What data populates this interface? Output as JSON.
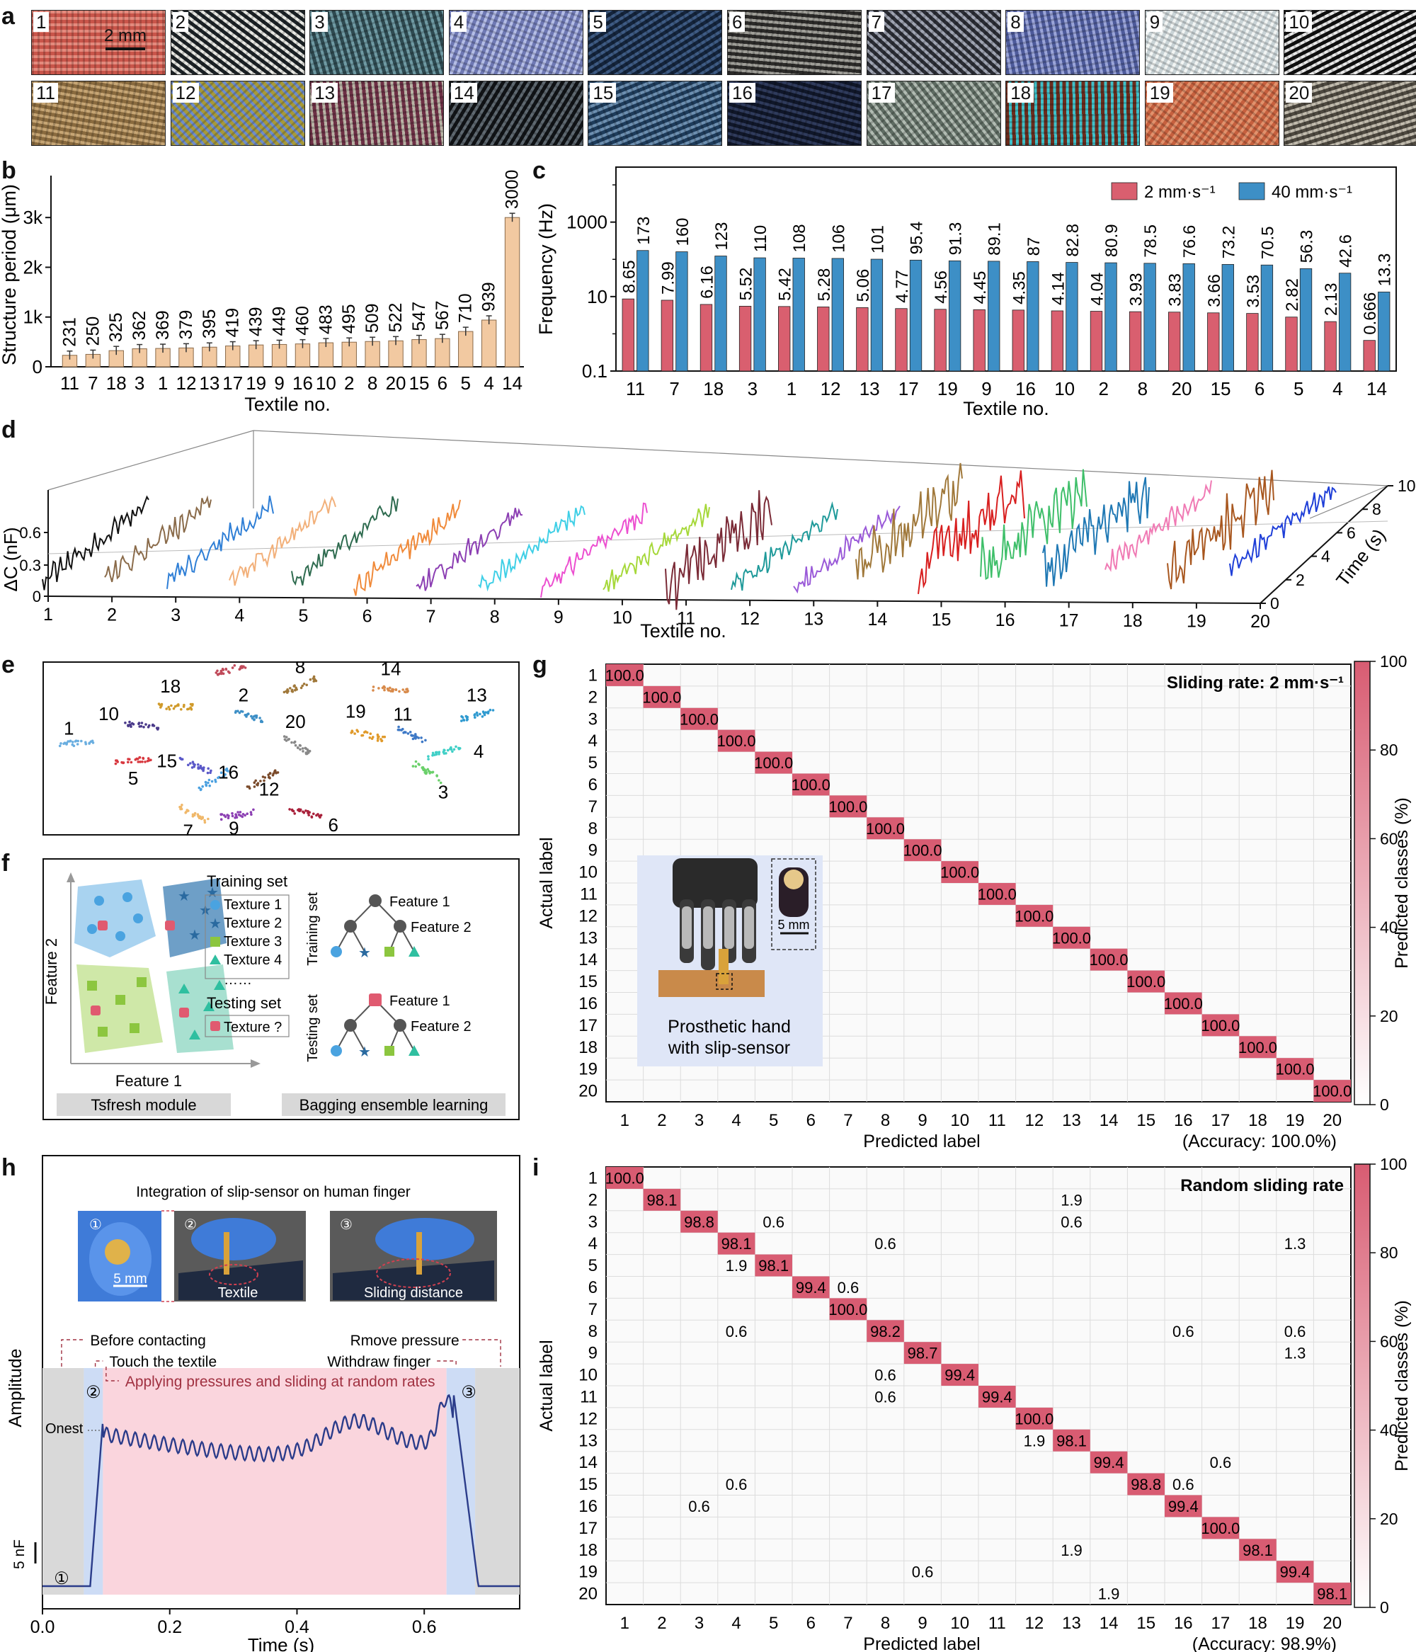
{
  "panel_labels": {
    "a": "a",
    "b": "b",
    "c": "c",
    "d": "d",
    "e": "e",
    "f": "f",
    "g": "g",
    "h": "h",
    "i": "i"
  },
  "panel_a": {
    "scale_bar": "2 mm",
    "tiles": [
      {
        "n": "1",
        "c1": "#c9554a",
        "c2": "#e58a7d"
      },
      {
        "n": "2",
        "c1": "#1c2226",
        "c2": "#e7e7e2"
      },
      {
        "n": "3",
        "c1": "#2f4b52",
        "c2": "#6f9aa3"
      },
      {
        "n": "4",
        "c1": "#6f79b4",
        "c2": "#b4bde6"
      },
      {
        "n": "5",
        "c1": "#14243c",
        "c2": "#3e5b84"
      },
      {
        "n": "6",
        "c1": "#2c2b29",
        "c2": "#9f9e98"
      },
      {
        "n": "7",
        "c1": "#2b2d35",
        "c2": "#9fa4b2"
      },
      {
        "n": "8",
        "c1": "#4e5b9b",
        "c2": "#9aa4d8"
      },
      {
        "n": "9",
        "c1": "#c9d3d6",
        "c2": "#f2f5f4"
      },
      {
        "n": "10",
        "c1": "#111111",
        "c2": "#e8e8e8"
      },
      {
        "n": "11",
        "c1": "#8a6b3f",
        "c2": "#c7a675"
      },
      {
        "n": "12",
        "c1": "#a79a39",
        "c2": "#6f8cc9"
      },
      {
        "n": "13",
        "c1": "#6d3045",
        "c2": "#b8b3a5"
      },
      {
        "n": "14",
        "c1": "#111417",
        "c2": "#5e6870"
      },
      {
        "n": "15",
        "c1": "#1e3c5b",
        "c2": "#6d8fb0"
      },
      {
        "n": "16",
        "c1": "#10172a",
        "c2": "#2f3b5c"
      },
      {
        "n": "17",
        "c1": "#5e6b62",
        "c2": "#b1bbb2"
      },
      {
        "n": "18",
        "c1": "#6b2d1e",
        "c2": "#3fc1c9"
      },
      {
        "n": "19",
        "c1": "#c6603e",
        "c2": "#e2926d"
      },
      {
        "n": "20",
        "c1": "#4e4940",
        "c2": "#c2bcae"
      }
    ]
  },
  "chart_data": [
    {
      "type": "bar",
      "title": "",
      "xlabel": "Textile no.",
      "ylabel": "Structure period (μm)",
      "ylim": [
        0,
        3700
      ],
      "yticks": [
        "0",
        "1k",
        "2k",
        "3k"
      ],
      "categories": [
        "11",
        "7",
        "18",
        "3",
        "1",
        "12",
        "13",
        "17",
        "19",
        "9",
        "16",
        "10",
        "2",
        "8",
        "20",
        "15",
        "6",
        "5",
        "4",
        "14"
      ],
      "values": [
        231,
        250,
        325,
        362,
        369,
        379,
        395,
        419,
        439,
        449,
        460,
        483,
        495,
        509,
        522,
        547,
        567,
        710,
        939,
        3000
      ],
      "labels": [
        "231",
        "250",
        "325",
        "362",
        "369",
        "379",
        "395",
        "419",
        "439",
        "449",
        "460",
        "483",
        "495",
        "509",
        "522",
        "547",
        "567",
        "710",
        "939",
        "3000"
      ],
      "color": "#f2c9a1",
      "error_bars": true
    },
    {
      "type": "bar",
      "title": "",
      "xlabel": "Textile no.",
      "ylabel": "Frequency (Hz)",
      "log_scale": true,
      "ylim": [
        0.1,
        30000
      ],
      "yticks": [
        "0.1",
        "10",
        "1000"
      ],
      "categories": [
        "11",
        "7",
        "18",
        "3",
        "1",
        "12",
        "13",
        "17",
        "19",
        "9",
        "16",
        "10",
        "2",
        "8",
        "20",
        "15",
        "6",
        "5",
        "4",
        "14"
      ],
      "series": [
        {
          "name": "2 mm·s⁻¹",
          "color": "#d95f6f",
          "values": [
            8.65,
            7.99,
            6.16,
            5.52,
            5.42,
            5.28,
            5.06,
            4.77,
            4.56,
            4.45,
            4.35,
            4.14,
            4.04,
            3.93,
            3.83,
            3.66,
            3.53,
            2.82,
            2.13,
            0.666
          ],
          "labels": [
            "8.65",
            "7.99",
            "6.16",
            "5.52",
            "5.42",
            "5.28",
            "5.06",
            "4.77",
            "4.56",
            "4.45",
            "4.35",
            "4.14",
            "4.04",
            "3.93",
            "3.83",
            "3.66",
            "3.53",
            "2.82",
            "2.13",
            "0.666"
          ]
        },
        {
          "name": "40 mm·s⁻¹",
          "color": "#3d8fc6",
          "values": [
            173,
            160,
            123,
            110,
            108,
            106,
            101,
            95.4,
            91.3,
            89.1,
            87,
            82.8,
            80.9,
            78.5,
            76.6,
            73.2,
            70.5,
            56.3,
            42.6,
            13.3
          ],
          "labels": [
            "173",
            "160",
            "123",
            "110",
            "108",
            "106",
            "101",
            "95.4",
            "91.3",
            "89.1",
            "87",
            "82.8",
            "80.9",
            "78.5",
            "76.6",
            "73.2",
            "70.5",
            "56.3",
            "42.6",
            "13.3"
          ]
        }
      ],
      "legend": "top-right"
    },
    {
      "type": "line",
      "title": "",
      "xlabel": "Textile no.",
      "ylabel": "ΔC (nF)",
      "zlabel": "Time (s)",
      "yticks": [
        "0",
        "0.3",
        "0.6"
      ],
      "xticks": [
        "1",
        "2",
        "3",
        "4",
        "5",
        "6",
        "7",
        "8",
        "9",
        "10",
        "11",
        "12",
        "13",
        "14",
        "15",
        "16",
        "17",
        "18",
        "19",
        "20"
      ],
      "zticks": [
        "0",
        "2",
        "4",
        "6",
        "8",
        "10"
      ],
      "series_colors": [
        "#111111",
        "#8a6b4a",
        "#2f7fd6",
        "#f2b07a",
        "#2e6b4f",
        "#f08a3a",
        "#8c3fb3",
        "#3fcfe6",
        "#ec4fd0",
        "#a6d83a",
        "#7a2a36",
        "#1f9a9a",
        "#9a5ad8",
        "#a0783a",
        "#d81f1f",
        "#3fbf6a",
        "#1f78b4",
        "#f07ab4",
        "#a8571f",
        "#1f3fd8"
      ]
    },
    {
      "type": "scatter",
      "title": "",
      "clusters": [
        {
          "label": "1",
          "cx": 0.07,
          "cy": 0.47,
          "color": "#6aaee0"
        },
        {
          "label": "2",
          "cx": 0.43,
          "cy": 0.31,
          "color": "#3d8fc6"
        },
        {
          "label": "3",
          "cx": 0.81,
          "cy": 0.64,
          "color": "#6ad06a"
        },
        {
          "label": "4",
          "cx": 0.84,
          "cy": 0.52,
          "color": "#3fcfc6"
        },
        {
          "label": "5",
          "cx": 0.19,
          "cy": 0.57,
          "color": "#d8383f"
        },
        {
          "label": "6",
          "cx": 0.55,
          "cy": 0.87,
          "color": "#a8203a"
        },
        {
          "label": "7",
          "cx": 0.32,
          "cy": 0.88,
          "color": "#f0b86a"
        },
        {
          "label": "8",
          "cx": 0.54,
          "cy": 0.14,
          "color": "#a0783a"
        },
        {
          "label": "9",
          "cx": 0.41,
          "cy": 0.88,
          "color": "#8c3fb3"
        },
        {
          "label": "10",
          "cx": 0.21,
          "cy": 0.37,
          "color": "#4a3a8a"
        },
        {
          "label": "11",
          "cx": 0.77,
          "cy": 0.42,
          "color": "#3d78c6"
        },
        {
          "label": "12",
          "cx": 0.46,
          "cy": 0.68,
          "color": "#7a4a2a"
        },
        {
          "label": "13",
          "cx": 0.91,
          "cy": 0.31,
          "color": "#2f9ad0"
        },
        {
          "label": "14",
          "cx": 0.73,
          "cy": 0.16,
          "color": "#d88a4a"
        },
        {
          "label": "15",
          "cx": 0.32,
          "cy": 0.6,
          "color": "#5a58c8"
        },
        {
          "label": "16",
          "cx": 0.36,
          "cy": 0.68,
          "color": "#4aa0e0"
        },
        {
          "label": "17",
          "cx": 0.39,
          "cy": 0.05,
          "color": "#c04a5a"
        },
        {
          "label": "18",
          "cx": 0.28,
          "cy": 0.26,
          "color": "#d09a2a"
        },
        {
          "label": "19",
          "cx": 0.68,
          "cy": 0.42,
          "color": "#e09a2a"
        },
        {
          "label": "20",
          "cx": 0.53,
          "cy": 0.48,
          "color": "#888888"
        }
      ]
    },
    {
      "type": "heatmap",
      "title": "Sliding rate: 2 mm·s⁻¹",
      "xlabel": "Predicted label",
      "ylabel": "Actual label",
      "accuracy": "(Accuracy: 100.0%)",
      "colorbar_label": "Predicted classes (%)",
      "colorbar_ticks": [
        "0",
        "20",
        "40",
        "60",
        "80",
        "100"
      ],
      "labels": [
        "1",
        "2",
        "3",
        "4",
        "5",
        "6",
        "7",
        "8",
        "9",
        "10",
        "11",
        "12",
        "13",
        "14",
        "15",
        "16",
        "17",
        "18",
        "19",
        "20"
      ],
      "cells": [
        [
          1,
          1,
          "100.0"
        ],
        [
          2,
          2,
          "100.0"
        ],
        [
          3,
          3,
          "100.0"
        ],
        [
          4,
          4,
          "100.0"
        ],
        [
          5,
          5,
          "100.0"
        ],
        [
          6,
          6,
          "100.0"
        ],
        [
          7,
          7,
          "100.0"
        ],
        [
          8,
          8,
          "100.0"
        ],
        [
          9,
          9,
          "100.0"
        ],
        [
          10,
          10,
          "100.0"
        ],
        [
          11,
          11,
          "100.0"
        ],
        [
          12,
          12,
          "100.0"
        ],
        [
          13,
          13,
          "100.0"
        ],
        [
          14,
          14,
          "100.0"
        ],
        [
          15,
          15,
          "100.0"
        ],
        [
          16,
          16,
          "100.0"
        ],
        [
          17,
          17,
          "100.0"
        ],
        [
          18,
          18,
          "100.0"
        ],
        [
          19,
          19,
          "100.0"
        ],
        [
          20,
          20,
          "100.0"
        ]
      ],
      "inset": {
        "caption_line1": "Prosthetic hand",
        "caption_line2": "with slip-sensor",
        "scale_bar": "5 mm"
      }
    },
    {
      "type": "line",
      "title": "",
      "xlabel": "Time (s)",
      "ylabel": "Amplitude",
      "xticks": [
        "0.0",
        "0.2",
        "0.4",
        "0.6"
      ],
      "xlim": [
        0,
        0.75
      ],
      "scale_bar": "5 nF",
      "line_color": "#2b3c8a",
      "phases": [
        {
          "from": 0,
          "to": 0.065,
          "color": "#d9d9d9"
        },
        {
          "from": 0.065,
          "to": 0.095,
          "color": "#cddcf5"
        },
        {
          "from": 0.095,
          "to": 0.635,
          "color": "#fad5dd"
        },
        {
          "from": 0.635,
          "to": 0.68,
          "color": "#cddcf5"
        },
        {
          "from": 0.68,
          "to": 0.75,
          "color": "#d9d9d9"
        }
      ],
      "annotations": {
        "before": "Before contacting",
        "touch": "Touch the textile",
        "apply": "Applying pressures and sliding at random rates",
        "remove": "Rmove pressure",
        "withdraw": "Withdraw finger",
        "onset": "Onest",
        "m1": "①",
        "m2": "②",
        "m3": "③"
      },
      "inset": {
        "title": "Integration of slip-sensor on human finger",
        "photo1_mark": "①",
        "photo1_scale": "5 mm",
        "photo2_mark": "②",
        "photo2_caption": "Textile",
        "photo3_mark": "③",
        "photo3_caption": "Sliding distance"
      }
    },
    {
      "type": "heatmap",
      "title": "Random sliding rate",
      "xlabel": "Predicted label",
      "ylabel": "Actual label",
      "accuracy": "(Accuracy: 98.9%)",
      "colorbar_label": "Predicted classes (%)",
      "colorbar_ticks": [
        "0",
        "20",
        "40",
        "60",
        "80",
        "100"
      ],
      "labels": [
        "1",
        "2",
        "3",
        "4",
        "5",
        "6",
        "7",
        "8",
        "9",
        "10",
        "11",
        "12",
        "13",
        "14",
        "15",
        "16",
        "17",
        "18",
        "19",
        "20"
      ],
      "cells": [
        [
          1,
          1,
          "100.0"
        ],
        [
          2,
          2,
          "98.1"
        ],
        [
          2,
          13,
          "1.9"
        ],
        [
          3,
          3,
          "98.8"
        ],
        [
          3,
          5,
          "0.6"
        ],
        [
          3,
          13,
          "0.6"
        ],
        [
          4,
          4,
          "98.1"
        ],
        [
          4,
          8,
          "0.6"
        ],
        [
          4,
          19,
          "1.3"
        ],
        [
          5,
          4,
          "1.9"
        ],
        [
          5,
          5,
          "98.1"
        ],
        [
          6,
          6,
          "99.4"
        ],
        [
          6,
          7,
          "0.6"
        ],
        [
          7,
          7,
          "100.0"
        ],
        [
          8,
          4,
          "0.6"
        ],
        [
          8,
          8,
          "98.2"
        ],
        [
          8,
          16,
          "0.6"
        ],
        [
          8,
          19,
          "0.6"
        ],
        [
          9,
          9,
          "98.7"
        ],
        [
          9,
          19,
          "1.3"
        ],
        [
          10,
          8,
          "0.6"
        ],
        [
          10,
          10,
          "99.4"
        ],
        [
          11,
          8,
          "0.6"
        ],
        [
          11,
          11,
          "99.4"
        ],
        [
          12,
          12,
          "100.0"
        ],
        [
          13,
          12,
          "1.9"
        ],
        [
          13,
          13,
          "98.1"
        ],
        [
          14,
          14,
          "99.4"
        ],
        [
          14,
          17,
          "0.6"
        ],
        [
          15,
          4,
          "0.6"
        ],
        [
          15,
          15,
          "98.8"
        ],
        [
          15,
          16,
          "0.6"
        ],
        [
          16,
          3,
          "0.6"
        ],
        [
          16,
          16,
          "99.4"
        ],
        [
          17,
          17,
          "100.0"
        ],
        [
          18,
          13,
          "1.9"
        ],
        [
          18,
          18,
          "98.1"
        ],
        [
          19,
          9,
          "0.6"
        ],
        [
          19,
          19,
          "99.4"
        ],
        [
          20,
          14,
          "1.9"
        ],
        [
          20,
          20,
          "98.1"
        ]
      ]
    }
  ],
  "panel_f": {
    "axis_x": "Feature 1",
    "axis_y": "Feature 2",
    "training_set": "Training set",
    "testing_set": "Testing set",
    "legend": [
      "Texture 1",
      "Texture 2",
      "Texture 3",
      "Texture 4"
    ],
    "ellipsis": "……",
    "unknown": "Texture ?",
    "tree_training": "Training set",
    "tree_testing": "Testing set",
    "tree_f1": "Feature 1",
    "tree_f2": "Feature 2",
    "module1": "Tsfresh module",
    "module2": "Bagging ensemble learning"
  }
}
